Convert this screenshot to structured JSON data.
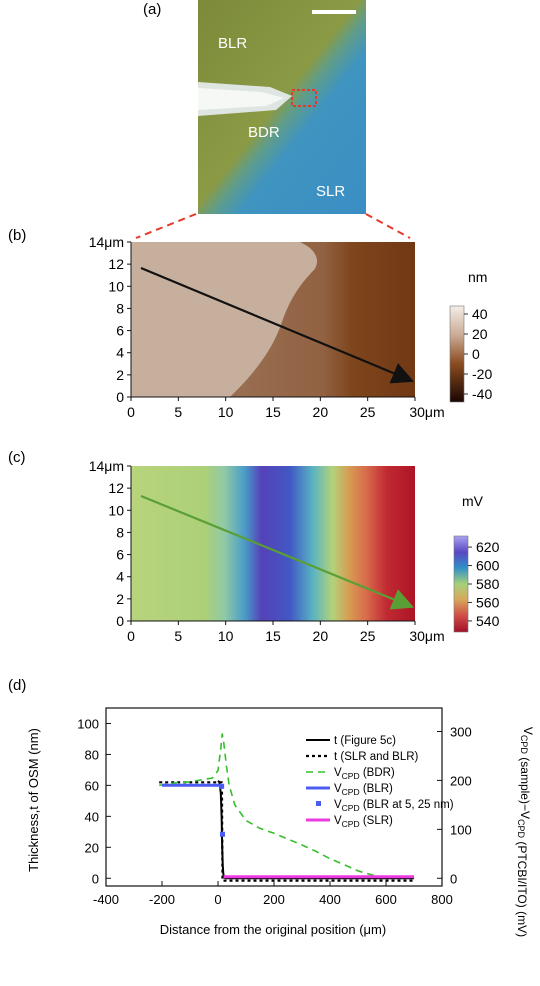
{
  "colors": {
    "accent_red": "#e53a2a",
    "optical_green": "#7f8a3a",
    "optical_blue": "#3f94c0",
    "afm_light": "#cbb3a2",
    "afm_dark": "#6b3411",
    "kpfm_green": "#b6d27a",
    "kpfm_red": "#b4192b",
    "arrow_black": "#111111",
    "arrow_green": "#5a9f35",
    "series_t": "#000000",
    "series_bdr": "#34c02a",
    "series_blr": "#4b5cf0",
    "series_slr": "#ea3ae0"
  },
  "panel_a": {
    "label": "(a)",
    "region_blr": "BLR",
    "region_bdr": "BDR",
    "region_slr": "SLR"
  },
  "panel_b": {
    "label": "(b)",
    "y_ticks": [
      "14μm",
      "12",
      "10",
      "8",
      "6",
      "4",
      "2",
      "0"
    ],
    "x_ticks": [
      "0",
      "5",
      "10",
      "15",
      "20",
      "25",
      "30μm"
    ],
    "colorbar_unit": "nm",
    "colorbar_ticks": [
      "40",
      "20",
      "0",
      "-20",
      "-40"
    ]
  },
  "panel_c": {
    "label": "(c)",
    "y_ticks": [
      "14μm",
      "12",
      "10",
      "8",
      "6",
      "4",
      "2",
      "0"
    ],
    "x_ticks": [
      "0",
      "5",
      "10",
      "15",
      "20",
      "25",
      "30μm"
    ],
    "colorbar_unit": "mV",
    "colorbar_ticks": [
      "620",
      "600",
      "580",
      "560",
      "540"
    ]
  },
  "panel_d": {
    "label": "(d)",
    "ylabel_left": "Thickness,t of OSM (nm)",
    "ylabel_right": "V_CPD (sample)−V_CPD (PTCBI/ITO) (mV)",
    "xlabel": "Distance from the original position (μm)",
    "y_ticks_left": [
      "100",
      "80",
      "60",
      "40",
      "20",
      "0"
    ],
    "y_ticks_right": [
      "300",
      "200",
      "100",
      "0"
    ],
    "x_ticks": [
      "-400",
      "-200",
      "0",
      "200",
      "400",
      "600",
      "800"
    ]
  },
  "chart_data": [
    {
      "type": "heatmap",
      "panel": "b",
      "x_range": [
        0,
        30
      ],
      "y_range": [
        0,
        14
      ],
      "x_unit": "μm",
      "y_unit": "μm",
      "colorbar": {
        "unit": "nm",
        "range": [
          -40,
          40
        ],
        "ticks": [
          40,
          20,
          0,
          -20,
          -40
        ]
      },
      "line_profile": {
        "from": [
          1,
          12
        ],
        "to": [
          30,
          0.8
        ],
        "color": "black"
      }
    },
    {
      "type": "heatmap",
      "panel": "c",
      "x_range": [
        0,
        30
      ],
      "y_range": [
        0,
        14
      ],
      "x_unit": "μm",
      "y_unit": "μm",
      "colorbar": {
        "unit": "mV",
        "range": [
          530,
          630
        ],
        "ticks": [
          620,
          600,
          580,
          560,
          540
        ]
      },
      "line_profile": {
        "from": [
          1,
          12
        ],
        "to": [
          30,
          0.8
        ],
        "color": "green"
      }
    },
    {
      "type": "line",
      "panel": "d",
      "xlim": [
        -400,
        800
      ],
      "ylim_left": [
        -5,
        110
      ],
      "ylim_right": [
        -15.8,
        348
      ],
      "xlabel": "Distance from the original position (μm)",
      "ylabel_left": "Thickness,t of OSM (nm)",
      "ylabel_right": "V_CPD (sample)−V_CPD (PTCBI/ITO) (mV)",
      "legend_position": "top-right",
      "series": [
        {
          "name": "t (Figure 5c)",
          "axis": "left",
          "style": "solid",
          "color": "#000000",
          "x": [
            0,
            5,
            10,
            13,
            15,
            17,
            19,
            21,
            23,
            25,
            30,
            60,
            120,
            200,
            300,
            400,
            500,
            600,
            700
          ],
          "y": [
            63,
            62,
            55,
            40,
            20,
            8,
            3,
            1,
            0.5,
            0.2,
            0,
            0,
            0,
            0,
            0,
            0,
            0,
            0,
            0
          ]
        },
        {
          "name": "t (SLR and BLR)",
          "axis": "left",
          "style": "dotted",
          "color": "#000000",
          "x": [
            -210,
            -150,
            -100,
            -50,
            0,
            10,
            14,
            16,
            20,
            100,
            200,
            300,
            400,
            500,
            600,
            700
          ],
          "y": [
            62,
            62,
            62,
            62,
            62,
            62,
            62,
            -1.5,
            -1.5,
            -1.5,
            -1.5,
            -1.5,
            -1.5,
            -1.5,
            -1.5,
            -1.5
          ]
        },
        {
          "name": "V_CPD (BDR)",
          "axis": "right",
          "style": "dashed",
          "color": "#34c02a",
          "x": [
            -210,
            -150,
            -100,
            -50,
            -20,
            0,
            10,
            15,
            20,
            25,
            30,
            40,
            60,
            100,
            150,
            200,
            250,
            300,
            350,
            400,
            450,
            500,
            560
          ],
          "y": [
            190,
            195,
            197,
            202,
            205,
            220,
            265,
            295,
            280,
            255,
            230,
            190,
            150,
            118,
            102,
            92,
            80,
            68,
            55,
            40,
            28,
            15,
            5
          ]
        },
        {
          "name": "V_CPD (BLR)",
          "axis": "right",
          "style": "solid",
          "color": "#4b5cf0",
          "x": [
            -200,
            10
          ],
          "y": [
            190,
            190
          ]
        },
        {
          "name": "V_CPD (BLR at 5, 25 nm)",
          "axis": "right",
          "style": "markers",
          "color": "#4b5cf0",
          "x": [
            13,
            16
          ],
          "y": [
            188,
            90
          ]
        },
        {
          "name": "V_CPD (SLR)",
          "axis": "right",
          "style": "solid",
          "color": "#ea3ae0",
          "x": [
            20,
            700
          ],
          "y": [
            3,
            3
          ]
        }
      ]
    }
  ]
}
